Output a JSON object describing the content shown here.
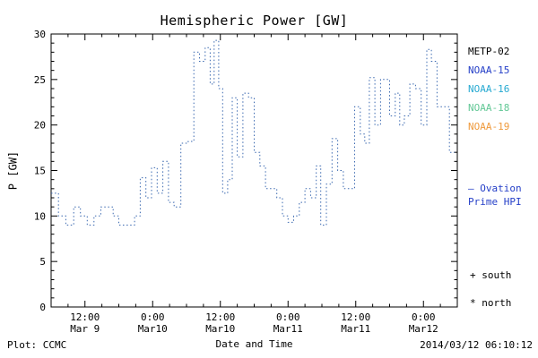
{
  "title": "Hemispheric Power [GW]",
  "footer": {
    "plot_credit": "Plot: CCMC",
    "timestamp": "2014/03/12 06:10:12"
  },
  "legend": {
    "satellites": [
      {
        "label": "METP-02",
        "color": "#000000"
      },
      {
        "label": "NOAA-15",
        "color": "#2640c8"
      },
      {
        "label": "NOAA-16",
        "color": "#28aad2"
      },
      {
        "label": "NOAA-18",
        "color": "#63c896"
      },
      {
        "label": "NOAA-19",
        "color": "#ef9a3c"
      }
    ],
    "ovation_line1": "— Ovation",
    "ovation_line2": "Prime HPI",
    "ovation_color": "#2640c8",
    "markers": [
      {
        "symbol": "+",
        "label": "south"
      },
      {
        "symbol": "*",
        "label": "north"
      }
    ]
  },
  "chart_data": {
    "type": "line",
    "step": true,
    "line_style": "dotted",
    "line_color": "#3a68b0",
    "title": "Hemispheric Power [GW]",
    "xlabel": "Date and Time",
    "ylabel": "P [GW]",
    "x_unit": "hours since 2014-03-09 06:00 UT",
    "xlim": [
      0,
      72
    ],
    "ylim": [
      0,
      30
    ],
    "grid": false,
    "yticks": [
      0,
      5,
      10,
      15,
      20,
      25,
      30
    ],
    "y_minor_step": 1,
    "x_minor_step": 3,
    "xticks": [
      {
        "t": 6,
        "time": "12:00",
        "date": "Mar 9"
      },
      {
        "t": 18,
        "time": "0:00",
        "date": "Mar10"
      },
      {
        "t": 30,
        "time": "12:00",
        "date": "Mar10"
      },
      {
        "t": 42,
        "time": "0:00",
        "date": "Mar11"
      },
      {
        "t": 54,
        "time": "12:00",
        "date": "Mar11"
      },
      {
        "t": 66,
        "time": "0:00",
        "date": "Mar12"
      }
    ],
    "x_end": 71.5,
    "points": [
      [
        0,
        12.5
      ],
      [
        1.3,
        10
      ],
      [
        2.6,
        9
      ],
      [
        4,
        11
      ],
      [
        5.2,
        10
      ],
      [
        6.4,
        9
      ],
      [
        7.6,
        10
      ],
      [
        8.8,
        11
      ],
      [
        10,
        11
      ],
      [
        11,
        10
      ],
      [
        12,
        9
      ],
      [
        13.5,
        9
      ],
      [
        14.8,
        10
      ],
      [
        15.8,
        14.2
      ],
      [
        16.8,
        12
      ],
      [
        17.8,
        15.3
      ],
      [
        18.8,
        12.5
      ],
      [
        19.8,
        16
      ],
      [
        20.8,
        11.5
      ],
      [
        21.8,
        11
      ],
      [
        23,
        18
      ],
      [
        24.3,
        18.2
      ],
      [
        25.3,
        28
      ],
      [
        26.3,
        27
      ],
      [
        27.3,
        28.5
      ],
      [
        28.2,
        24.5
      ],
      [
        28.9,
        29.3
      ],
      [
        29.7,
        24
      ],
      [
        30.4,
        12.5
      ],
      [
        31.3,
        14
      ],
      [
        32.1,
        23
      ],
      [
        33,
        16.5
      ],
      [
        34,
        23.5
      ],
      [
        35,
        23
      ],
      [
        36,
        17
      ],
      [
        37,
        15.5
      ],
      [
        38,
        13
      ],
      [
        39,
        13
      ],
      [
        40,
        12
      ],
      [
        41,
        10
      ],
      [
        42,
        9.3
      ],
      [
        43,
        10
      ],
      [
        44,
        11.5
      ],
      [
        45,
        13
      ],
      [
        46,
        12
      ],
      [
        47,
        15.5
      ],
      [
        47.8,
        9
      ],
      [
        48.8,
        13.5
      ],
      [
        49.8,
        18.5
      ],
      [
        50.8,
        15
      ],
      [
        51.8,
        13
      ],
      [
        52.8,
        13
      ],
      [
        53.8,
        22
      ],
      [
        54.8,
        19
      ],
      [
        55.6,
        18
      ],
      [
        56.4,
        25.2
      ],
      [
        57.4,
        20
      ],
      [
        58.4,
        25
      ],
      [
        59.2,
        25
      ],
      [
        60,
        21
      ],
      [
        61,
        23.5
      ],
      [
        61.8,
        20
      ],
      [
        62.6,
        21
      ],
      [
        63.6,
        24.5
      ],
      [
        64.6,
        24
      ],
      [
        65.6,
        20
      ],
      [
        66.6,
        28.3
      ],
      [
        67.4,
        27
      ],
      [
        68.4,
        22
      ],
      [
        69.8,
        22
      ],
      [
        70.6,
        17
      ]
    ]
  }
}
